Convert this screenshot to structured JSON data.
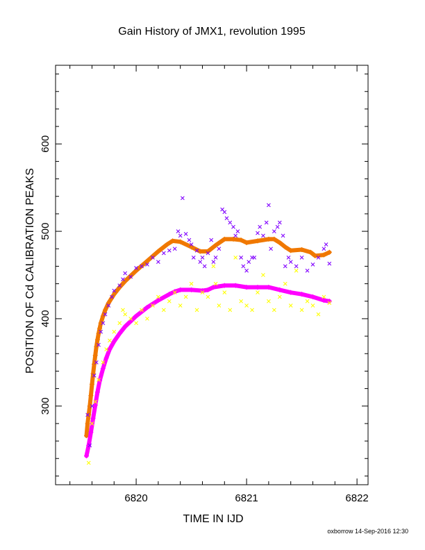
{
  "chart_data": {
    "type": "scatter",
    "title": "Gain History of JMX1, revolution 1995",
    "xlabel": "TIME IN IJD",
    "ylabel": "POSITION OF Cd CALIBRATION PEAKS",
    "xlim": [
      6819.27,
      6822.1
    ],
    "ylim": [
      210,
      690
    ],
    "xticks": [
      {
        "value": 6820,
        "label": "6820"
      },
      {
        "value": 6821,
        "label": "6821"
      },
      {
        "value": 6822,
        "label": "6822"
      }
    ],
    "yticks": [
      {
        "value": 300,
        "label": "300"
      },
      {
        "value": 400,
        "label": "400"
      },
      {
        "value": 500,
        "label": "500"
      },
      {
        "value": 600,
        "label": "600"
      }
    ],
    "grid": false,
    "footer": "oxborrow 14-Sep-2016 12:30",
    "series": [
      {
        "marker": "line-plus",
        "color": "#f07800",
        "points": [
          [
            6819.55,
            266
          ],
          [
            6819.56,
            280
          ],
          [
            6819.57,
            290
          ],
          [
            6819.58,
            300
          ],
          [
            6819.59,
            312
          ],
          [
            6819.6,
            325
          ],
          [
            6819.61,
            337
          ],
          [
            6819.62,
            348
          ],
          [
            6819.63,
            358
          ],
          [
            6819.64,
            368
          ],
          [
            6819.65,
            376
          ],
          [
            6819.66,
            383
          ],
          [
            6819.67,
            389
          ],
          [
            6819.68,
            395
          ],
          [
            6819.7,
            403
          ],
          [
            6819.72,
            410
          ],
          [
            6819.75,
            418
          ],
          [
            6819.8,
            428
          ],
          [
            6819.85,
            436
          ],
          [
            6819.9,
            443
          ],
          [
            6820.0,
            455
          ],
          [
            6820.1,
            466
          ],
          [
            6820.2,
            477
          ],
          [
            6820.28,
            485
          ],
          [
            6820.33,
            489
          ],
          [
            6820.4,
            488
          ],
          [
            6820.5,
            482
          ],
          [
            6820.58,
            477
          ],
          [
            6820.65,
            477
          ],
          [
            6820.72,
            484
          ],
          [
            6820.8,
            491
          ],
          [
            6820.88,
            491
          ],
          [
            6820.95,
            490
          ],
          [
            6821.0,
            487
          ],
          [
            6821.1,
            489
          ],
          [
            6821.2,
            491
          ],
          [
            6821.25,
            491
          ],
          [
            6821.3,
            487
          ],
          [
            6821.35,
            482
          ],
          [
            6821.4,
            478
          ],
          [
            6821.5,
            479
          ],
          [
            6821.58,
            476
          ],
          [
            6821.62,
            472
          ],
          [
            6821.7,
            473
          ],
          [
            6821.75,
            476
          ]
        ]
      },
      {
        "marker": "line-plus",
        "color": "#ff00ff",
        "points": [
          [
            6819.55,
            243
          ],
          [
            6819.57,
            255
          ],
          [
            6819.59,
            270
          ],
          [
            6819.61,
            286
          ],
          [
            6819.63,
            301
          ],
          [
            6819.65,
            316
          ],
          [
            6819.67,
            329
          ],
          [
            6819.7,
            343
          ],
          [
            6819.73,
            355
          ],
          [
            6819.76,
            365
          ],
          [
            6819.8,
            374
          ],
          [
            6819.85,
            383
          ],
          [
            6819.9,
            391
          ],
          [
            6820.0,
            403
          ],
          [
            6820.1,
            413
          ],
          [
            6820.2,
            421
          ],
          [
            6820.3,
            428
          ],
          [
            6820.35,
            431
          ],
          [
            6820.4,
            433
          ],
          [
            6820.5,
            433
          ],
          [
            6820.6,
            432
          ],
          [
            6820.65,
            433
          ],
          [
            6820.7,
            436
          ],
          [
            6820.8,
            438
          ],
          [
            6820.9,
            438
          ],
          [
            6821.0,
            436
          ],
          [
            6821.1,
            436
          ],
          [
            6821.2,
            436
          ],
          [
            6821.3,
            433
          ],
          [
            6821.4,
            430
          ],
          [
            6821.5,
            428
          ],
          [
            6821.6,
            425
          ],
          [
            6821.7,
            421
          ],
          [
            6821.75,
            420
          ]
        ]
      },
      {
        "marker": "x",
        "color": "#8000ff",
        "points": [
          [
            6819.56,
            290
          ],
          [
            6819.58,
            255
          ],
          [
            6819.6,
            300
          ],
          [
            6819.62,
            335
          ],
          [
            6819.64,
            350
          ],
          [
            6819.66,
            370
          ],
          [
            6819.68,
            385
          ],
          [
            6819.7,
            395
          ],
          [
            6819.72,
            405
          ],
          [
            6819.75,
            415
          ],
          [
            6819.78,
            425
          ],
          [
            6819.8,
            432
          ],
          [
            6819.85,
            438
          ],
          [
            6819.88,
            445
          ],
          [
            6819.9,
            452
          ],
          [
            6819.95,
            448
          ],
          [
            6820.0,
            458
          ],
          [
            6820.05,
            460
          ],
          [
            6820.1,
            462
          ],
          [
            6820.15,
            470
          ],
          [
            6820.2,
            465
          ],
          [
            6820.25,
            475
          ],
          [
            6820.3,
            478
          ],
          [
            6820.35,
            480
          ],
          [
            6820.38,
            500
          ],
          [
            6820.4,
            495
          ],
          [
            6820.42,
            538
          ],
          [
            6820.45,
            497
          ],
          [
            6820.48,
            490
          ],
          [
            6820.5,
            485
          ],
          [
            6820.52,
            470
          ],
          [
            6820.55,
            478
          ],
          [
            6820.58,
            465
          ],
          [
            6820.6,
            470
          ],
          [
            6820.62,
            460
          ],
          [
            6820.65,
            475
          ],
          [
            6820.68,
            490
          ],
          [
            6820.7,
            465
          ],
          [
            6820.72,
            470
          ],
          [
            6820.75,
            480
          ],
          [
            6820.78,
            525
          ],
          [
            6820.8,
            522
          ],
          [
            6820.82,
            515
          ],
          [
            6820.85,
            510
          ],
          [
            6820.88,
            505
          ],
          [
            6820.9,
            495
          ],
          [
            6820.92,
            500
          ],
          [
            6820.95,
            470
          ],
          [
            6820.97,
            460
          ],
          [
            6821.0,
            455
          ],
          [
            6821.02,
            465
          ],
          [
            6821.05,
            470
          ],
          [
            6821.07,
            470
          ],
          [
            6821.1,
            498
          ],
          [
            6821.12,
            505
          ],
          [
            6821.15,
            495
          ],
          [
            6821.18,
            510
          ],
          [
            6821.2,
            530
          ],
          [
            6821.22,
            480
          ],
          [
            6821.25,
            500
          ],
          [
            6821.28,
            505
          ],
          [
            6821.3,
            510
          ],
          [
            6821.33,
            495
          ],
          [
            6821.35,
            460
          ],
          [
            6821.38,
            470
          ],
          [
            6821.4,
            465
          ],
          [
            6821.45,
            460
          ],
          [
            6821.5,
            470
          ],
          [
            6821.55,
            455
          ],
          [
            6821.6,
            462
          ],
          [
            6821.65,
            470
          ],
          [
            6821.7,
            480
          ],
          [
            6821.72,
            485
          ],
          [
            6821.75,
            463
          ]
        ]
      },
      {
        "marker": "x",
        "color": "#ffff00",
        "points": [
          [
            6819.57,
            235
          ],
          [
            6819.6,
            280
          ],
          [
            6819.63,
            305
          ],
          [
            6819.66,
            330
          ],
          [
            6819.7,
            350
          ],
          [
            6819.73,
            365
          ],
          [
            6819.76,
            375
          ],
          [
            6819.8,
            385
          ],
          [
            6819.85,
            395
          ],
          [
            6819.88,
            410
          ],
          [
            6819.9,
            405
          ],
          [
            6819.95,
            400
          ],
          [
            6820.0,
            395
          ],
          [
            6820.05,
            410
          ],
          [
            6820.1,
            400
          ],
          [
            6820.15,
            415
          ],
          [
            6820.2,
            425
          ],
          [
            6820.25,
            410
          ],
          [
            6820.3,
            420
          ],
          [
            6820.35,
            430
          ],
          [
            6820.4,
            415
          ],
          [
            6820.45,
            425
          ],
          [
            6820.5,
            440
          ],
          [
            6820.55,
            410
          ],
          [
            6820.6,
            430
          ],
          [
            6820.65,
            425
          ],
          [
            6820.7,
            460
          ],
          [
            6820.72,
            440
          ],
          [
            6820.75,
            415
          ],
          [
            6820.8,
            430
          ],
          [
            6820.85,
            410
          ],
          [
            6820.9,
            470
          ],
          [
            6820.95,
            420
          ],
          [
            6821.0,
            415
          ],
          [
            6821.05,
            410
          ],
          [
            6821.1,
            430
          ],
          [
            6821.15,
            450
          ],
          [
            6821.2,
            420
          ],
          [
            6821.25,
            410
          ],
          [
            6821.3,
            425
          ],
          [
            6821.35,
            440
          ],
          [
            6821.4,
            415
          ],
          [
            6821.45,
            455
          ],
          [
            6821.5,
            410
          ],
          [
            6821.55,
            420
          ],
          [
            6821.6,
            415
          ],
          [
            6821.65,
            405
          ],
          [
            6821.7,
            425
          ],
          [
            6821.75,
            418
          ]
        ]
      }
    ]
  }
}
